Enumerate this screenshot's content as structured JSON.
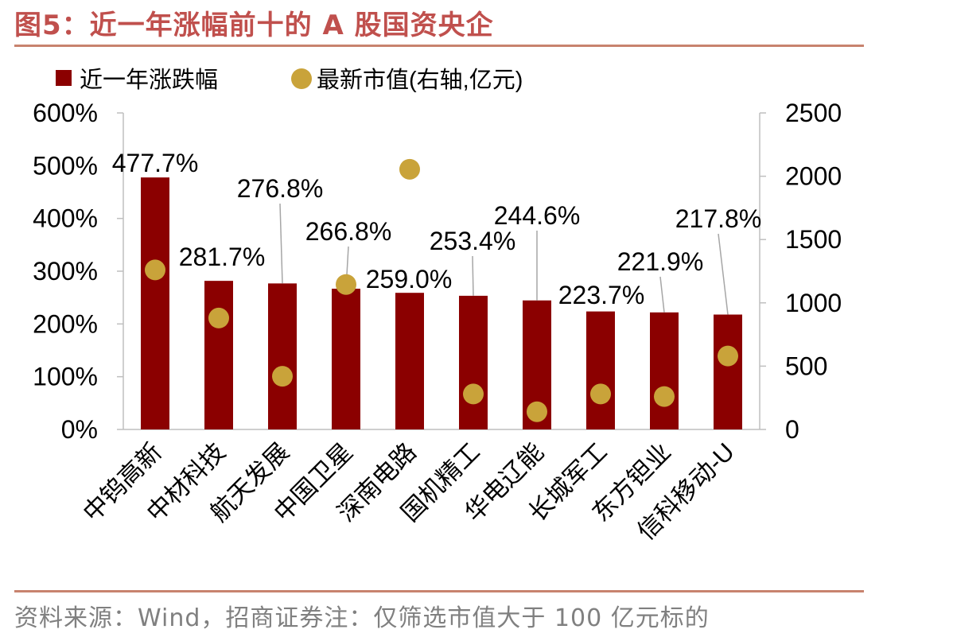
{
  "header": {
    "title": "图5：近一年涨幅前十的 A 股国资央企"
  },
  "footer": {
    "source": "资料来源：Wind，招商证券注：仅筛选市值大于 100 亿元标的"
  },
  "colors": {
    "bar": "#8b0000",
    "dot": "#c9a33a",
    "title": "#c0504d",
    "rule": "#c8836e",
    "axis": "#bfbfbf"
  },
  "chart_data": {
    "type": "bar",
    "categories": [
      "中钨高新",
      "中材科技",
      "航天发展",
      "中国卫星",
      "深南电路",
      "国机精工",
      "华电辽能",
      "长城军工",
      "东方钽业",
      "信科移动-U"
    ],
    "series": [
      {
        "name": "近一年涨跌幅",
        "type": "bar",
        "axis": "left",
        "values": [
          477.7,
          281.7,
          276.8,
          266.8,
          259.0,
          253.4,
          244.6,
          223.7,
          221.9,
          217.8
        ],
        "labels": [
          "477.7%",
          "281.7%",
          "276.8%",
          "266.8%",
          "259.0%",
          "253.4%",
          "244.6%",
          "223.7%",
          "221.9%",
          "217.8%"
        ]
      },
      {
        "name": "最新市值(右轴,亿元)",
        "type": "scatter",
        "axis": "right",
        "values": [
          1260,
          880,
          420,
          1145,
          2055,
          280,
          140,
          280,
          260,
          580
        ]
      }
    ],
    "y_left": {
      "ylim": [
        0,
        600
      ],
      "ticks": [
        0,
        100,
        200,
        300,
        400,
        500,
        600
      ],
      "tick_labels": [
        "0%",
        "100%",
        "200%",
        "300%",
        "400%",
        "500%",
        "600%"
      ]
    },
    "y_right": {
      "ylim": [
        0,
        2500
      ],
      "ticks": [
        0,
        500,
        1000,
        1500,
        2000,
        2500
      ],
      "tick_labels": [
        "0",
        "500",
        "1000",
        "1500",
        "2000",
        "2500"
      ]
    },
    "legend": {
      "placement": "top-left"
    },
    "grid": false
  }
}
